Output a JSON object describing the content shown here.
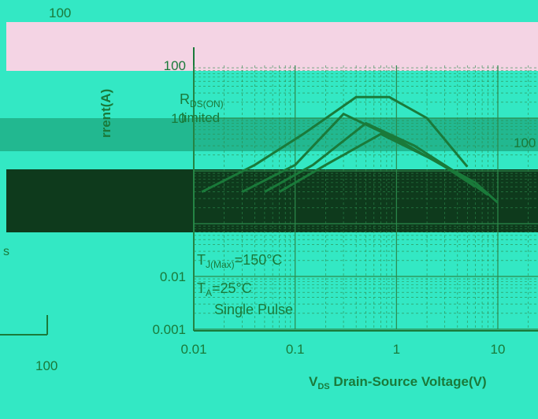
{
  "chart_data": {
    "type": "line",
    "title": "",
    "xlabel": {
      "symbol": "V",
      "sub": "DS",
      "text": " Drain-Source Voltage(V)"
    },
    "ylabel": "rrent(A)",
    "x_scale": "log",
    "y_scale": "log",
    "xlim": [
      0.01,
      20
    ],
    "ylim": [
      0.001,
      100
    ],
    "x_ticks": [
      "0.01",
      "0.1",
      "1",
      "10"
    ],
    "y_ticks": [
      "0.001",
      "0.01",
      "10",
      "100"
    ],
    "grid": true,
    "series": [
      {
        "x": [
          0.012,
          0.04,
          0.12,
          0.4,
          0.85,
          2,
          5
        ],
        "y": [
          0.4,
          1.3,
          5,
          25,
          25,
          10,
          1.2
        ]
      },
      {
        "x": [
          0.03,
          0.1,
          0.3,
          1,
          3,
          6
        ],
        "y": [
          0.4,
          1.3,
          12,
          4,
          1.2,
          0.5
        ]
      },
      {
        "x": [
          0.05,
          0.15,
          0.5,
          1.5,
          4,
          8
        ],
        "y": [
          0.4,
          1.3,
          8,
          3,
          0.9,
          0.35
        ]
      },
      {
        "x": [
          0.07,
          0.2,
          0.7,
          2.5,
          6,
          10
        ],
        "y": [
          0.4,
          1.3,
          5,
          1.5,
          0.6,
          0.25
        ]
      }
    ],
    "annotations": {
      "rds_main": "R",
      "rds_sub": "DS(ON)",
      "limited": "limited",
      "tj_main": "T",
      "tj_sub": "J(Max)",
      "tj_value": "=150°C",
      "ta_main": "T",
      "ta_sub": "A",
      "ta_value": "=25°C",
      "single_pulse": "Single Pulse",
      "right_label": "100",
      "top_label": "100",
      "left_label": "100",
      "left_small": "s"
    }
  },
  "colors": {
    "background": "#33e8c4",
    "pink_band": "#f4d4e4",
    "dark_band": "#0e3a1c",
    "plot_band": "#22b890",
    "line": "#1a7a3a",
    "grid": "#2c8a4c"
  }
}
